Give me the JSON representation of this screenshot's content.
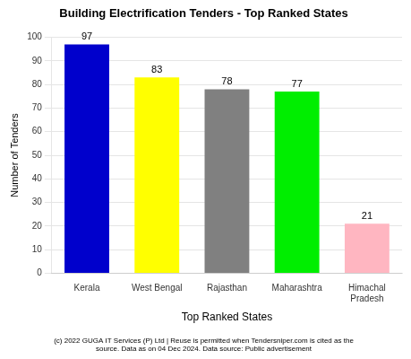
{
  "chart_data": {
    "type": "bar",
    "title": "Building Electrification Tenders - Top Ranked States",
    "xlabel": "Top Ranked States",
    "ylabel": "Number of Tenders",
    "categories": [
      "Kerala",
      "West Bengal",
      "Rajasthan",
      "Maharashtra",
      "Himachal\nPradesh"
    ],
    "values": [
      97,
      83,
      78,
      77,
      21
    ],
    "colors": [
      "#0000cc",
      "#ffff00",
      "#808080",
      "#00ee00",
      "#ffb6c1"
    ],
    "ylim": [
      0,
      100
    ],
    "yticks": [
      0,
      10,
      20,
      30,
      40,
      50,
      60,
      70,
      80,
      90,
      100
    ],
    "grid": true,
    "data_labels": true,
    "footer": [
      "(c) 2022 GUGA IT Services (P) Ltd | Reuse is permitted when Tendersniper.com is cited as the",
      "source. Data as on 04 Dec 2024. Data source: Public advertisement"
    ]
  }
}
